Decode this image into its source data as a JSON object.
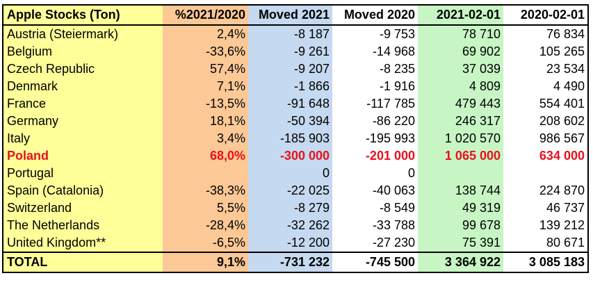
{
  "table": {
    "headers": [
      "Apple Stocks (Ton)",
      "%2021/2020",
      "Moved 2021",
      "Moved 2020",
      "2021-02-01",
      "2020-02-01"
    ],
    "rows": [
      {
        "country": "Austria (Steiermark)",
        "pct": "2,4%",
        "moved2021": "-8 187",
        "moved2020": "-9 753",
        "stock2021": "78 710",
        "stock2020": "76 834"
      },
      {
        "country": "Belgium",
        "pct": "-33,6%",
        "moved2021": "-9 261",
        "moved2020": "-14 968",
        "stock2021": "69 902",
        "stock2020": "105 265"
      },
      {
        "country": "Czech Republic",
        "pct": "57,4%",
        "moved2021": "-9 207",
        "moved2020": "-8 235",
        "stock2021": "37 039",
        "stock2020": "23 534"
      },
      {
        "country": "Denmark",
        "pct": "7,1%",
        "moved2021": "-1 866",
        "moved2020": "-1 916",
        "stock2021": "4 809",
        "stock2020": "4 490"
      },
      {
        "country": "France",
        "pct": "-13,5%",
        "moved2021": "-91 648",
        "moved2020": "-117 785",
        "stock2021": "479 443",
        "stock2020": "554 401"
      },
      {
        "country": "Germany",
        "pct": "18,1%",
        "moved2021": "-50 394",
        "moved2020": "-86 220",
        "stock2021": "246 317",
        "stock2020": "208 602"
      },
      {
        "country": "Italy",
        "pct": "3,4%",
        "moved2021": "-185 903",
        "moved2020": "-195 993",
        "stock2021": "1 020 570",
        "stock2020": "986 567"
      },
      {
        "country": "Poland",
        "pct": "68,0%",
        "moved2021": "-300 000",
        "moved2020": "-201 000",
        "stock2021": "1 065 000",
        "stock2020": "634 000",
        "highlight": true
      },
      {
        "country": "Portugal",
        "pct": "",
        "moved2021": "0",
        "moved2020": "0",
        "stock2021": "",
        "stock2020": ""
      },
      {
        "country": "Spain (Catalonia)",
        "pct": "-38,3%",
        "moved2021": "-22 025",
        "moved2020": "-40 063",
        "stock2021": "138 744",
        "stock2020": "224 870"
      },
      {
        "country": "Switzerland",
        "pct": "5,5%",
        "moved2021": "-8 279",
        "moved2020": "-8 549",
        "stock2021": "49 319",
        "stock2020": "46 737"
      },
      {
        "country": "The Netherlands",
        "pct": "-28,4%",
        "moved2021": "-32 262",
        "moved2020": "-33 788",
        "stock2021": "99 678",
        "stock2020": "139 212"
      },
      {
        "country": "United Kingdom**",
        "pct": "-6,5%",
        "moved2021": "-12 200",
        "moved2020": "-27 230",
        "stock2021": "75 391",
        "stock2020": "80 671"
      }
    ],
    "total": {
      "country": "TOTAL",
      "pct": "9,1%",
      "moved2021": "-731 232",
      "moved2020": "-745 500",
      "stock2021": "3 364 922",
      "stock2020": "3 085 183"
    }
  },
  "colors": {
    "country_column": "#ffff99",
    "pct_column": "#fcc896",
    "moved2021_column": "#c5d9f0",
    "stock2021_column": "#c7f5c4",
    "highlight_text": "#e8111c"
  }
}
